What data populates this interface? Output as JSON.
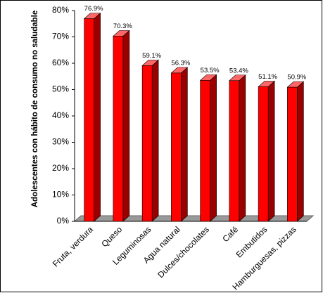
{
  "chart_data": {
    "type": "bar3d",
    "y_label": "Adolescentes con hábito de consumo no saludable",
    "categories": [
      "Fruta, verdura",
      "Queso",
      "Leguminosas",
      "Agua natural",
      "Dulces/chocolates",
      "Café",
      "Embutidos",
      "Hamburguesas, pizzas"
    ],
    "values": [
      76.9,
      70.3,
      59.1,
      56.3,
      53.5,
      53.4,
      51.1,
      50.9
    ],
    "value_labels": [
      "76.9%",
      "70.3%",
      "59.1%",
      "56.3%",
      "53.5%",
      "53.4%",
      "51.1%",
      "50.9%"
    ],
    "color": "#ff0000",
    "ylim": [
      0,
      80
    ],
    "yticks": [
      {
        "value": 0,
        "label": "0%"
      },
      {
        "value": 10,
        "label": "10%"
      },
      {
        "value": 20,
        "label": "20%"
      },
      {
        "value": 30,
        "label": "30%"
      },
      {
        "value": 40,
        "label": "40%"
      },
      {
        "value": 50,
        "label": "50%"
      },
      {
        "value": 60,
        "label": "60%"
      },
      {
        "value": 70,
        "label": "70%"
      },
      {
        "value": 80,
        "label": "80%"
      }
    ]
  }
}
